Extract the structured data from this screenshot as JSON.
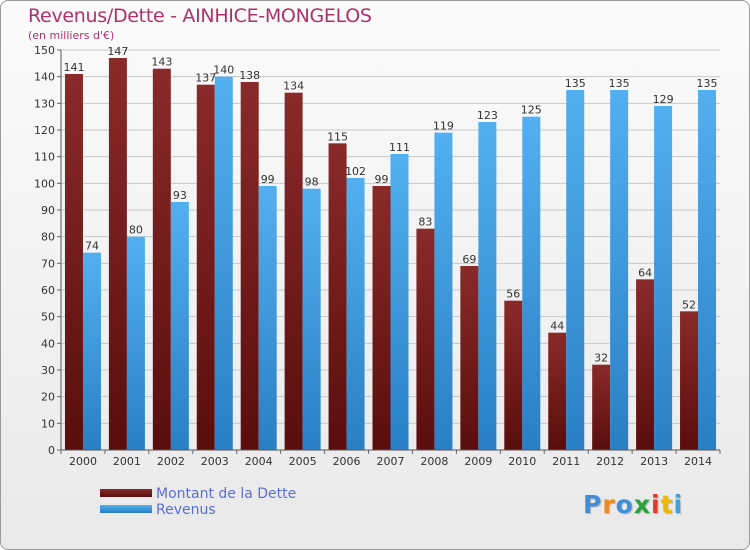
{
  "header": {
    "title": "Revenus/Dette - AINHICE-MONGELOS",
    "subtitle": "(en milliers d'€)"
  },
  "chart_data": {
    "type": "bar",
    "categories": [
      "2000",
      "2001",
      "2002",
      "2003",
      "2004",
      "2005",
      "2006",
      "2007",
      "2008",
      "2009",
      "2010",
      "2011",
      "2012",
      "2013",
      "2014"
    ],
    "series": [
      {
        "name": "Montant de la Dette",
        "values": [
          141,
          147,
          143,
          137,
          138,
          134,
          115,
          99,
          83,
          69,
          56,
          44,
          32,
          64,
          52
        ],
        "color": "#7a1f1f"
      },
      {
        "name": "Revenus",
        "values": [
          74,
          80,
          93,
          140,
          99,
          98,
          102,
          111,
          119,
          123,
          125,
          135,
          135,
          129,
          135
        ],
        "color": "#3f9fe0"
      }
    ],
    "ylim": [
      0,
      150
    ],
    "yticks": [
      0,
      10,
      20,
      30,
      40,
      50,
      60,
      70,
      80,
      90,
      100,
      110,
      120,
      130,
      140,
      150
    ],
    "grid": true,
    "legend_position": "bottom-left"
  },
  "legend": {
    "items": [
      {
        "label": "Montant de la Dette",
        "color": "#6b1a1a"
      },
      {
        "label": "Revenus",
        "color": "#3f9fe0"
      }
    ]
  },
  "logo": {
    "letters": [
      "P",
      "r",
      "o",
      "x",
      "i",
      "t",
      "i"
    ],
    "colors": [
      "#3f8fd8",
      "#f08a1a",
      "#3f8fd8",
      "#2aa13a",
      "#e23a2a",
      "#f0b800",
      "#3fa0e0"
    ]
  }
}
